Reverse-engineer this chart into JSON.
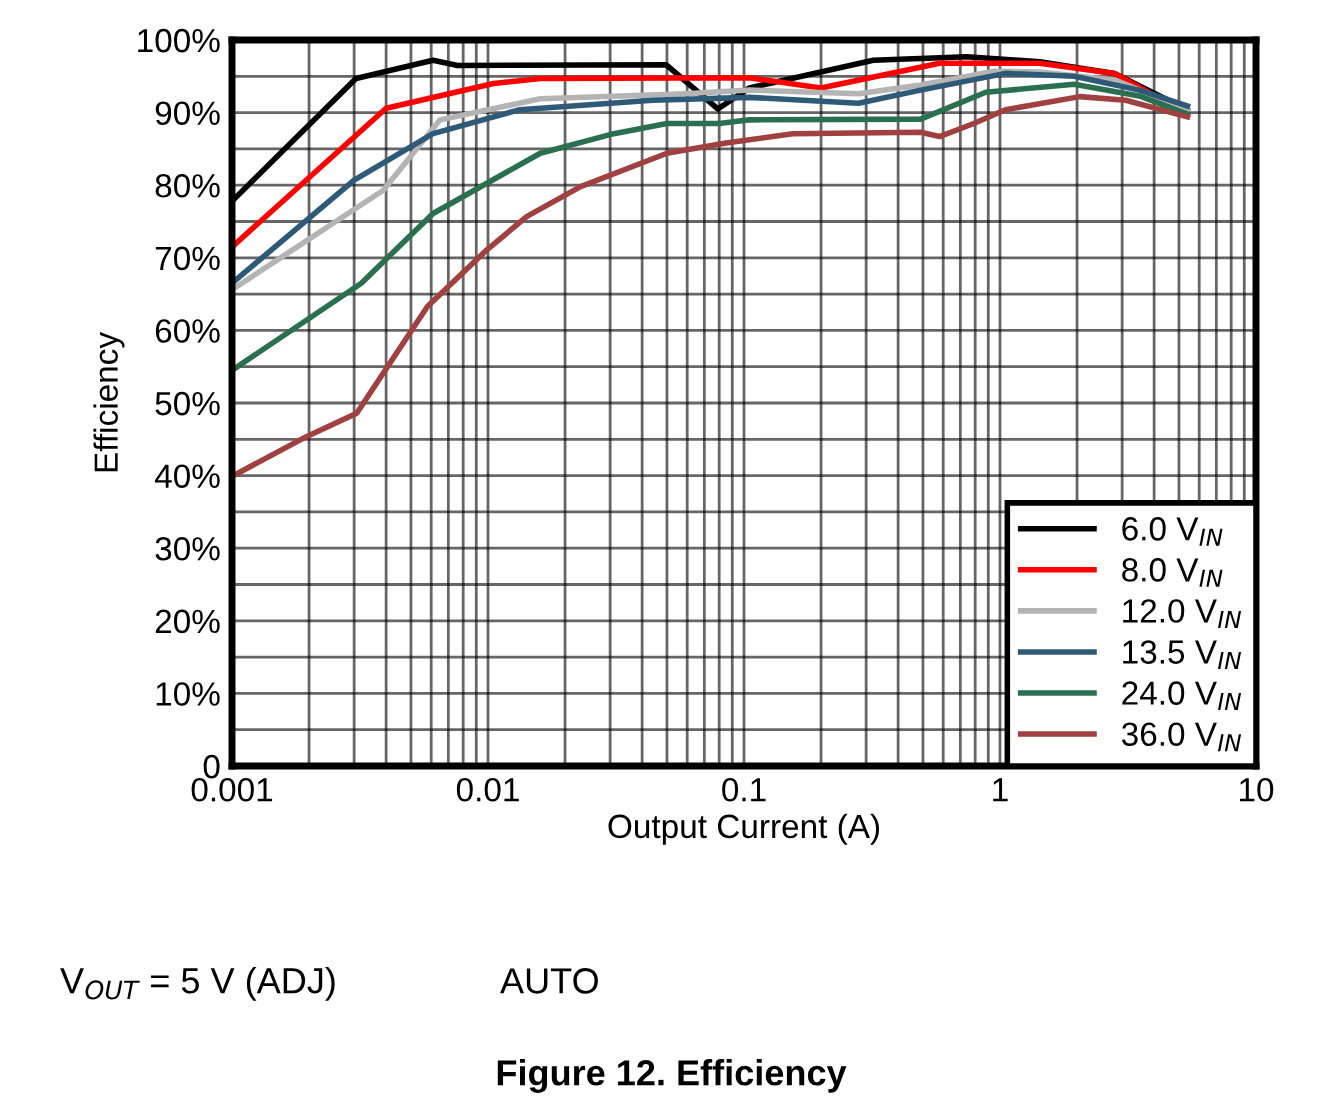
{
  "chart_data": {
    "type": "line",
    "title": "Figure 12. Efficiency",
    "xlabel": "Output Current (A)",
    "ylabel": "Efficiency",
    "annotations": [
      "V$_{OUT}$ = 5 V (ADJ)",
      "AUTO"
    ],
    "log": "x",
    "grid": true,
    "legend": "bottom right",
    "marker": "none",
    "line_style": "solid",
    "xlim": [
      0.001,
      10
    ],
    "ylim": [
      0,
      100
    ],
    "xticks": [
      0.001,
      {
        "value": 0.002,
        "label": null
      },
      {
        "value": 0.003,
        "label": null
      },
      {
        "value": 0.004,
        "label": null
      },
      {
        "value": 0.005,
        "label": null
      },
      {
        "value": 0.006,
        "label": null
      },
      {
        "value": 0.007,
        "label": null
      },
      {
        "value": 0.008,
        "label": null
      },
      {
        "value": 0.009,
        "label": null
      },
      0.01,
      {
        "value": 0.02,
        "label": null
      },
      {
        "value": 0.03,
        "label": null
      },
      {
        "value": 0.04,
        "label": null
      },
      {
        "value": 0.05,
        "label": null
      },
      {
        "value": 0.06,
        "label": null
      },
      {
        "value": 0.07,
        "label": null
      },
      {
        "value": 0.08,
        "label": null
      },
      {
        "value": 0.09,
        "label": null
      },
      0.1,
      {
        "value": 0.2,
        "label": null
      },
      {
        "value": 0.3,
        "label": null
      },
      {
        "value": 0.4,
        "label": null
      },
      {
        "value": 0.5,
        "label": null
      },
      {
        "value": 0.6,
        "label": null
      },
      {
        "value": 0.7,
        "label": null
      },
      {
        "value": 0.8,
        "label": null
      },
      {
        "value": 0.9,
        "label": null
      },
      1,
      {
        "value": 2,
        "label": null
      },
      {
        "value": 3,
        "label": null
      },
      {
        "value": 4,
        "label": null
      },
      {
        "value": 5,
        "label": null
      },
      {
        "value": 6,
        "label": null
      },
      {
        "value": 7,
        "label": null
      },
      {
        "value": 8,
        "label": null
      },
      {
        "value": 9,
        "label": null
      },
      10
    ],
    "yticks": [
      0,
      {
        "value": 5,
        "label": null
      },
      {
        "value": 10,
        "label": "10%"
      },
      {
        "value": 15,
        "label": null
      },
      {
        "value": 20,
        "label": "20%"
      },
      {
        "value": 25,
        "label": null
      },
      {
        "value": 30,
        "label": "30%"
      },
      {
        "value": 35,
        "label": null
      },
      {
        "value": 40,
        "label": "40%"
      },
      {
        "value": 45,
        "label": null
      },
      {
        "value": 50,
        "label": "50%"
      },
      {
        "value": 55,
        "label": null
      },
      {
        "value": 60,
        "label": "60%"
      },
      {
        "value": 65,
        "label": null
      },
      {
        "value": 70,
        "label": "70%"
      },
      {
        "value": 75,
        "label": null
      },
      {
        "value": 80,
        "label": "80%"
      },
      {
        "value": 85,
        "label": null
      },
      {
        "value": 90,
        "label": "90%"
      },
      {
        "value": 95,
        "label": null
      },
      {
        "value": 100,
        "label": "100%"
      }
    ],
    "series": [
      {
        "name": "6.0 V$_{IN}$",
        "color": "#000000",
        "x": [
          0.001,
          0.00305,
          0.0061,
          0.0076,
          0.0496,
          0.079,
          0.105,
          0.32,
          0.74,
          1.43,
          2.8,
          5.4
        ],
        "values": [
          77.8,
          94.7,
          97.2,
          96.5,
          96.6,
          90.5,
          93.4,
          97.2,
          97.7,
          97.0,
          95.4,
          90.4
        ]
      },
      {
        "name": "8.0 V$_{IN}$",
        "color": "#ff0000",
        "x": [
          0.001,
          0.004,
          0.0105,
          0.016,
          0.105,
          0.2,
          0.58,
          1.43,
          2.8,
          5.4
        ],
        "values": [
          71.5,
          90.6,
          94.0,
          94.7,
          94.8,
          93.4,
          96.8,
          96.8,
          95.4,
          89.8
        ]
      },
      {
        "name": "12.0 V$_{IN}$",
        "color": "#b4b4b4",
        "x": [
          0.001,
          0.0039,
          0.0065,
          0.016,
          0.059,
          0.105,
          0.28,
          0.49,
          0.95,
          1.43,
          2.8,
          5.4
        ],
        "values": [
          65.6,
          79.3,
          89.0,
          91.9,
          92.6,
          93.1,
          92.6,
          93.8,
          95.7,
          95.6,
          94.5,
          90.4
        ]
      },
      {
        "name": "13.5 V$_{IN}$",
        "color": "#2e5a78",
        "x": [
          0.001,
          0.003,
          0.0061,
          0.0133,
          0.044,
          0.105,
          0.28,
          0.49,
          1.05,
          1.95,
          3.5,
          5.4
        ],
        "values": [
          66.5,
          80.7,
          87.1,
          90.4,
          91.7,
          92.1,
          91.3,
          93.1,
          95.4,
          95.0,
          93.1,
          90.9
        ]
      },
      {
        "name": "24.0 V$_{IN}$",
        "color": "#2a7050",
        "x": [
          0.001,
          0.0032,
          0.0061,
          0.016,
          0.031,
          0.05,
          0.08,
          0.105,
          0.49,
          0.88,
          1.95,
          3.5,
          5.4
        ],
        "values": [
          54.5,
          66.5,
          76.1,
          84.4,
          87.1,
          88.5,
          88.5,
          89.0,
          89.1,
          92.8,
          93.9,
          92.3,
          89.8
        ]
      },
      {
        "name": "36.0 V$_{IN}$",
        "color": "#a04040",
        "x": [
          0.001,
          0.00196,
          0.00307,
          0.0058,
          0.0099,
          0.0142,
          0.023,
          0.05,
          0.085,
          0.155,
          0.49,
          0.58,
          0.79,
          1.05,
          2.05,
          3.1,
          5.4
        ],
        "values": [
          39.9,
          45.4,
          48.6,
          63.3,
          71.1,
          75.7,
          79.8,
          84.4,
          85.8,
          87.1,
          87.3,
          86.7,
          88.5,
          90.4,
          92.2,
          91.7,
          89.4
        ]
      }
    ]
  }
}
